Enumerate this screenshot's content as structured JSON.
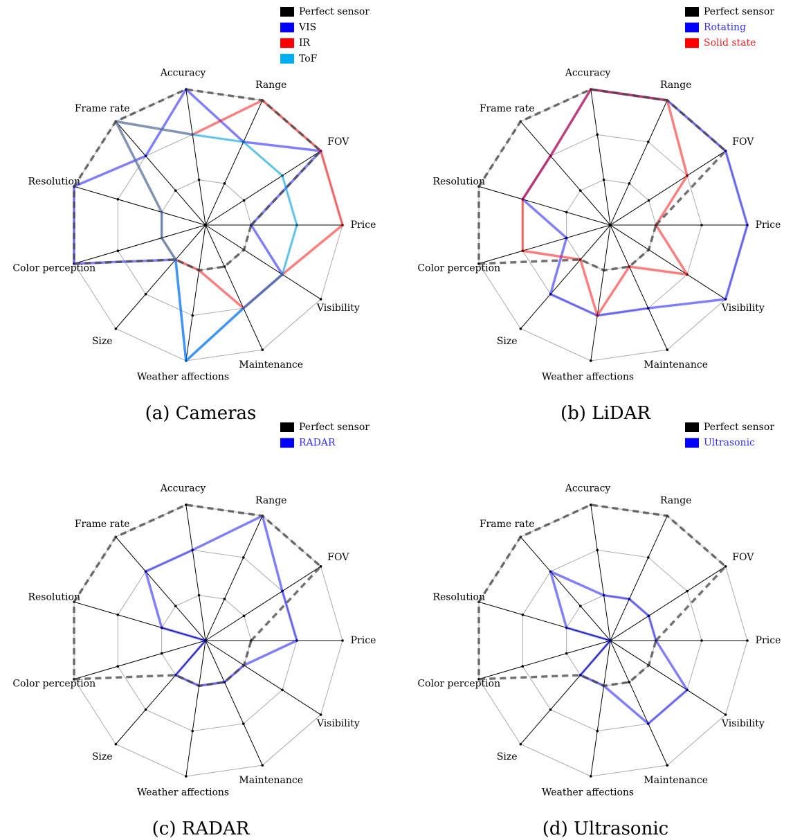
{
  "chart_data": [
    {
      "type": "radar",
      "title": "(a) Cameras",
      "categories": [
        "Price",
        "FOV",
        "Range",
        "Accuracy",
        "Frame rate",
        "Resolution",
        "Color perception",
        "Size",
        "Weather affections",
        "Maintenance",
        "Visibility"
      ],
      "ylim": [
        0,
        3
      ],
      "yticks": [
        1,
        2,
        3
      ],
      "series": [
        {
          "name": "Perfect sensor",
          "color": "#000000",
          "text_color": "#000000",
          "dashed": true,
          "values": [
            1,
            3,
            3,
            3,
            3,
            3,
            3,
            1,
            1,
            1,
            1
          ]
        },
        {
          "name": "VIS",
          "color": "#0000ff",
          "text_color": "#000000",
          "values": [
            1,
            3,
            2,
            3,
            2,
            3,
            3,
            1,
            3,
            2,
            2
          ]
        },
        {
          "name": "IR",
          "color": "#ff0000",
          "text_color": "#000000",
          "values": [
            3,
            3,
            3,
            2,
            3,
            1,
            1,
            1,
            1,
            2,
            2
          ]
        },
        {
          "name": "ToF",
          "color": "#00aeef",
          "text_color": "#000000",
          "values": [
            2,
            2,
            2,
            2,
            3,
            1,
            1,
            1,
            3,
            2,
            2
          ]
        }
      ]
    },
    {
      "type": "radar",
      "title": "(b) LiDAR",
      "categories": [
        "Price",
        "FOV",
        "Range",
        "Accuracy",
        "Frame rate",
        "Resolution",
        "Color perception",
        "Size",
        "Weather affections",
        "Maintenance",
        "Visibility"
      ],
      "ylim": [
        0,
        3
      ],
      "yticks": [
        1,
        2,
        3
      ],
      "series": [
        {
          "name": "Perfect sensor",
          "color": "#000000",
          "text_color": "#000000",
          "dashed": true,
          "values": [
            1,
            3,
            3,
            3,
            3,
            3,
            3,
            1,
            1,
            1,
            1
          ]
        },
        {
          "name": "Rotating",
          "color": "#0000ff",
          "text_color": "#3333ee",
          "values": [
            3,
            3,
            3,
            3,
            2,
            2,
            1,
            2,
            2,
            2,
            3
          ]
        },
        {
          "name": "Solid state",
          "color": "#ff0000",
          "text_color": "#ee2222",
          "values": [
            1,
            2,
            3,
            3,
            2,
            2,
            2,
            1,
            2,
            1,
            2
          ]
        }
      ]
    },
    {
      "type": "radar",
      "title": "(c) RADAR",
      "categories": [
        "Price",
        "FOV",
        "Range",
        "Accuracy",
        "Frame rate",
        "Resolution",
        "Color perception",
        "Size",
        "Weather affections",
        "Maintenance",
        "Visibility"
      ],
      "ylim": [
        0,
        3
      ],
      "yticks": [
        1,
        2,
        3
      ],
      "series": [
        {
          "name": "Perfect sensor",
          "color": "#000000",
          "text_color": "#000000",
          "dashed": true,
          "values": [
            1,
            3,
            3,
            3,
            3,
            3,
            3,
            1,
            1,
            1,
            1
          ]
        },
        {
          "name": "RADAR",
          "color": "#0000ff",
          "text_color": "#3333ee",
          "values": [
            2,
            2,
            3,
            2,
            2,
            1,
            0,
            1,
            1,
            1,
            1
          ]
        }
      ]
    },
    {
      "type": "radar",
      "title": "(d) Ultrasonic",
      "categories": [
        "Price",
        "FOV",
        "Range",
        "Accuracy",
        "Frame rate",
        "Resolution",
        "Color perception",
        "Size",
        "Weather affections",
        "Maintenance",
        "Visibility"
      ],
      "ylim": [
        0,
        3
      ],
      "yticks": [
        1,
        2,
        3
      ],
      "series": [
        {
          "name": "Perfect sensor",
          "color": "#000000",
          "text_color": "#000000",
          "dashed": true,
          "values": [
            1,
            3,
            3,
            3,
            3,
            3,
            3,
            1,
            1,
            1,
            1
          ]
        },
        {
          "name": "Ultrasonic",
          "color": "#0000ff",
          "text_color": "#3333ee",
          "values": [
            1,
            1,
            1,
            1,
            2,
            1,
            0,
            1,
            1,
            2,
            2
          ]
        }
      ]
    }
  ]
}
